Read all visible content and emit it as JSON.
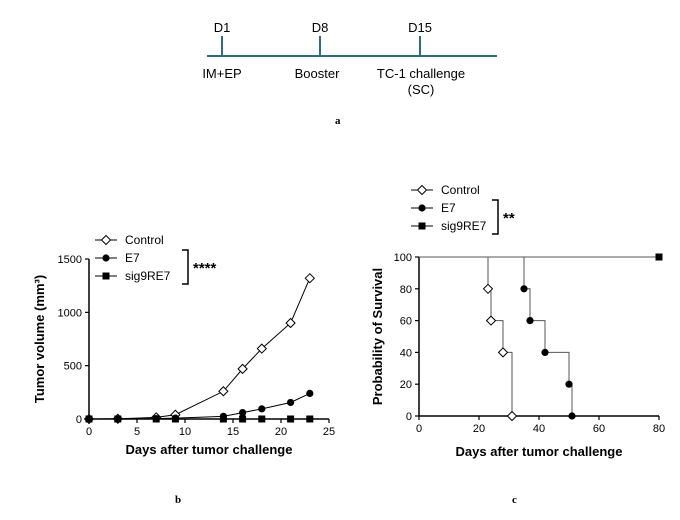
{
  "timeline": {
    "days": [
      "D1",
      "D8",
      "D15"
    ],
    "events": [
      [
        "IM+EP"
      ],
      [
        "Booster"
      ],
      [
        "TC-1 challenge",
        "(SC)"
      ]
    ],
    "colors": {
      "line": "#2f6b7e"
    }
  },
  "panel_labels": [
    "a",
    "b",
    "c"
  ],
  "chart_data": [
    {
      "type": "line",
      "xlabel": "Days after tumor challenge",
      "ylabel": "Tumor volume (mm³)",
      "xlim": [
        0,
        25
      ],
      "ylim": [
        0,
        1500
      ],
      "xticks": [
        0,
        5,
        10,
        15,
        20,
        25
      ],
      "yticks": [
        0,
        500,
        1000,
        1500
      ],
      "legend_position": "top-right",
      "significance": "****",
      "series": [
        {
          "name": "Control",
          "marker": "diamond-open",
          "x": [
            0,
            3,
            7,
            9,
            14,
            16,
            18,
            21,
            23
          ],
          "y": [
            0,
            2,
            15,
            40,
            260,
            470,
            660,
            900,
            1320
          ]
        },
        {
          "name": "E7",
          "marker": "circle-filled",
          "x": [
            0,
            3,
            7,
            9,
            14,
            16,
            18,
            21,
            23
          ],
          "y": [
            0,
            1,
            4,
            8,
            25,
            60,
            95,
            155,
            240
          ]
        },
        {
          "name": "sig9RE7",
          "marker": "square-filled",
          "x": [
            0,
            3,
            7,
            9,
            14,
            16,
            18,
            21,
            23
          ],
          "y": [
            0,
            0,
            0,
            0,
            0,
            0,
            0,
            0,
            0
          ]
        }
      ]
    },
    {
      "type": "line",
      "xlabel": "Days after tumor challenge",
      "ylabel": "Probability of Survival",
      "xlim": [
        0,
        80
      ],
      "ylim": [
        0,
        100
      ],
      "xticks": [
        0,
        20,
        40,
        60,
        80
      ],
      "yticks": [
        0,
        20,
        40,
        60,
        80,
        100
      ],
      "legend_position": "top-left",
      "significance": "**",
      "series": [
        {
          "name": "Control",
          "marker": "diamond-open",
          "steps": [
            [
              0,
              100
            ],
            [
              23,
              80
            ],
            [
              24,
              60
            ],
            [
              28,
              40
            ],
            [
              31,
              0
            ]
          ],
          "markers": [
            [
              23,
              80
            ],
            [
              24,
              60
            ],
            [
              28,
              40
            ],
            [
              31,
              0
            ]
          ]
        },
        {
          "name": "E7",
          "marker": "circle-filled",
          "steps": [
            [
              0,
              100
            ],
            [
              35,
              80
            ],
            [
              37,
              60
            ],
            [
              42,
              40
            ],
            [
              50,
              20
            ],
            [
              51,
              0
            ]
          ],
          "markers": [
            [
              35,
              80
            ],
            [
              37,
              60
            ],
            [
              42,
              40
            ],
            [
              50,
              20
            ],
            [
              51,
              0
            ]
          ]
        },
        {
          "name": "sig9RE7",
          "marker": "square-filled",
          "steps": [
            [
              0,
              100
            ],
            [
              80,
              100
            ]
          ],
          "markers": [
            [
              80,
              100
            ]
          ]
        }
      ]
    }
  ]
}
